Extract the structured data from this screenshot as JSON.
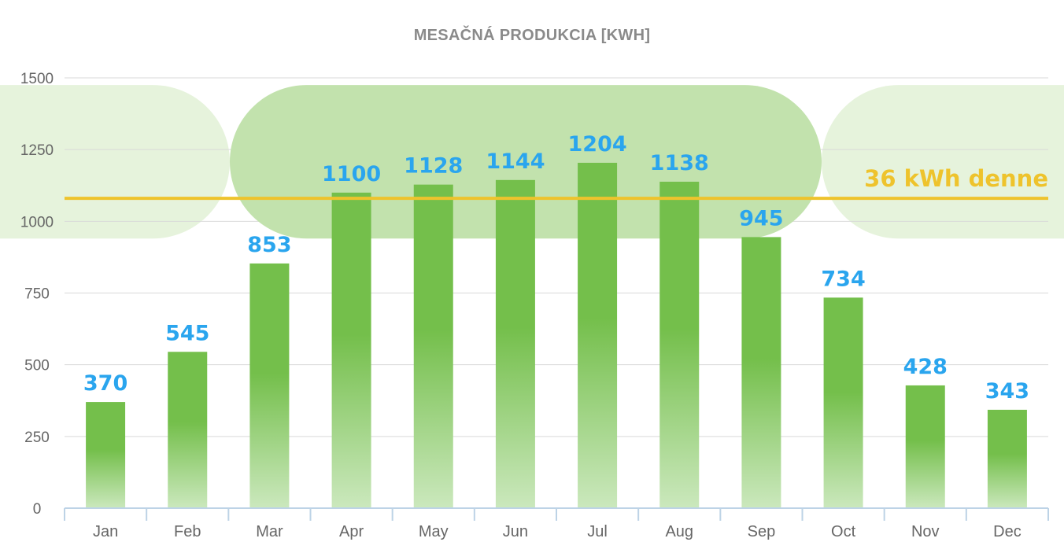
{
  "colors": {
    "bar_top": "#74bf4b",
    "bar_bottom": "#cbe8bd",
    "value_label": "#2aa5ee",
    "reference_line": "#eec32c",
    "axis_text": "#666666",
    "title": "#8a8a8a",
    "grid": "#d9d9d9",
    "axis": "#bdd3e6",
    "band_light": "#e6f3dc",
    "band_strong": "#c2e2ad"
  },
  "chart_data": {
    "type": "bar",
    "title": "MESAČNÁ PRODUKCIA [KWH]",
    "categories": [
      "Jan",
      "Feb",
      "Mar",
      "Apr",
      "May",
      "Jun",
      "Jul",
      "Aug",
      "Sep",
      "Oct",
      "Nov",
      "Dec"
    ],
    "values": [
      370,
      545,
      853,
      1100,
      1128,
      1144,
      1204,
      1138,
      945,
      734,
      428,
      343
    ],
    "data_labels": [
      "370",
      "545",
      "853",
      "1100",
      "1128",
      "1144",
      "1204",
      "1138",
      "945",
      "734",
      "428",
      "343"
    ],
    "ylim": [
      0,
      1500
    ],
    "yticks": [
      "0",
      "250",
      "500",
      "750",
      "1000",
      "1250",
      "1500"
    ],
    "grid": true,
    "reference_line": {
      "label": "36 kWh denne",
      "value": 1080
    },
    "highlight_band": {
      "from": 940,
      "to": 1475
    }
  }
}
